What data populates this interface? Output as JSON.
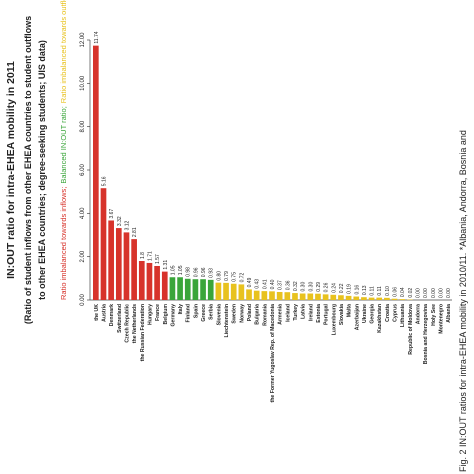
{
  "chart_data": {
    "type": "bar",
    "title": "IN:OUT ratio for intra-EHEA mobility in 2011",
    "subtitle": [
      "(Ratio of student inflows from other EHEA countries to student outflows",
      "to other EHEA countries; degree-seeking students; UIS data)"
    ],
    "caption": "Fig. 2  IN:OUT ratios for intra-EHEA mobility in 2010/11. *Albania, Andorra, Bosnia and",
    "categories": [
      "the UK",
      "Austria",
      "Denmark",
      "Switzerland",
      "Czech Republic",
      "the Netherlands",
      "the Russian Federation",
      "Hungary",
      "France",
      "Belgium",
      "Germany",
      "Italy",
      "Finland",
      "Spain",
      "Greece",
      "Serbia",
      "Slovenia",
      "Liechtenstein",
      "Sweden",
      "Norway",
      "Poland",
      "Bulgaria",
      "Romania",
      "the Former Yugoslav Rep. of Macedonia",
      "Armenia",
      "Iceland",
      "Turkey",
      "Latvia",
      "Ireland",
      "Estonia",
      "Portugal",
      "Luxembourg",
      "Slovakia",
      "Malta",
      "Azerbaijan",
      "Ukraine",
      "Georgia",
      "Kazakhstan",
      "Croatia",
      "Cyprus",
      "Lithuania",
      "Republic of Moldova",
      "Andorra",
      "Bosnia and Herzegovina",
      "Holy See",
      "Montenegro",
      "Albania"
    ],
    "series": [
      {
        "name": "Ratio imbalanced towards inflows;",
        "color": "#d7332b",
        "values": [
          11.74,
          5.16,
          3.67,
          3.32,
          3.12,
          2.81,
          1.8,
          1.71,
          1.57,
          1.31,
          null,
          null,
          null,
          null,
          null,
          null,
          null,
          null,
          null,
          null,
          null,
          null,
          null,
          null,
          null,
          null,
          null,
          null,
          null,
          null,
          null,
          null,
          null,
          null,
          null,
          null,
          null,
          null,
          null,
          null,
          null,
          null,
          null,
          null,
          null,
          null,
          null
        ],
        "value_labels": [
          "11.74",
          "5.16",
          "3.67",
          "3.32",
          "3.12",
          "2.81",
          "1.8",
          "1.71",
          "1.57",
          "1.31",
          null,
          null,
          null,
          null,
          null,
          null,
          null,
          null,
          null,
          null,
          null,
          null,
          null,
          null,
          null,
          null,
          null,
          null,
          null,
          null,
          null,
          null,
          null,
          null,
          null,
          null,
          null,
          null,
          null,
          null,
          null,
          null,
          null,
          null,
          null,
          null,
          null
        ]
      },
      {
        "name": "Balanced IN:OUT ratio;",
        "color": "#3aa53a",
        "values": [
          null,
          null,
          null,
          null,
          null,
          null,
          null,
          null,
          null,
          null,
          1.05,
          1.05,
          0.98,
          0.96,
          0.96,
          0.93,
          null,
          null,
          null,
          null,
          null,
          null,
          null,
          null,
          null,
          null,
          null,
          null,
          null,
          null,
          null,
          null,
          null,
          null,
          null,
          null,
          null,
          null,
          null,
          null,
          null,
          null,
          null,
          null,
          null,
          null,
          null
        ],
        "value_labels": [
          null,
          null,
          null,
          null,
          null,
          null,
          null,
          null,
          null,
          null,
          "1.05",
          "1.05",
          "0.98",
          "0.96",
          "0.96",
          "0.93",
          null,
          null,
          null,
          null,
          null,
          null,
          null,
          null,
          null,
          null,
          null,
          null,
          null,
          null,
          null,
          null,
          null,
          null,
          null,
          null,
          null,
          null,
          null,
          null,
          null,
          null,
          null,
          null,
          null,
          null,
          null
        ]
      },
      {
        "name": "Ratio imbalanced towards outflows",
        "color": "#e8c21e",
        "values": [
          null,
          null,
          null,
          null,
          null,
          null,
          null,
          null,
          null,
          null,
          null,
          null,
          null,
          null,
          null,
          null,
          0.8,
          0.79,
          0.75,
          0.72,
          0.49,
          0.43,
          0.41,
          0.4,
          0.37,
          0.36,
          0.32,
          0.3,
          0.3,
          0.29,
          0.26,
          0.24,
          0.22,
          0.19,
          0.16,
          0.13,
          0.11,
          0.11,
          0.1,
          0.06,
          0.04,
          0.02,
          0,
          0,
          0,
          0,
          0
        ],
        "value_labels": [
          null,
          null,
          null,
          null,
          null,
          null,
          null,
          null,
          null,
          null,
          null,
          null,
          null,
          null,
          null,
          null,
          "0.80",
          "0.79",
          "0.75",
          "0.72",
          "0.49",
          "0.43",
          "0.41",
          "0.40",
          "0.37",
          "0.36",
          "0.32",
          "0.30",
          "0.30",
          "0.29",
          "0.26",
          "0.24",
          "0.22",
          "0.19",
          "0.16",
          "0.13",
          "0.11",
          "0.11",
          "0.10",
          "0.06",
          "0.04",
          "0.02",
          "0.00",
          "0.00",
          "0.00",
          "0.00",
          "0.00"
        ]
      }
    ],
    "ylim": [
      0,
      12
    ],
    "yticks": [
      {
        "value": 0,
        "label": "0.00"
      },
      {
        "value": 2,
        "label": "2.00"
      },
      {
        "value": 4,
        "label": "4.00"
      },
      {
        "value": 6,
        "label": "6.00"
      },
      {
        "value": 8,
        "label": "8.00"
      },
      {
        "value": 10,
        "label": "10.00"
      },
      {
        "value": 12,
        "label": "12.00"
      }
    ]
  }
}
